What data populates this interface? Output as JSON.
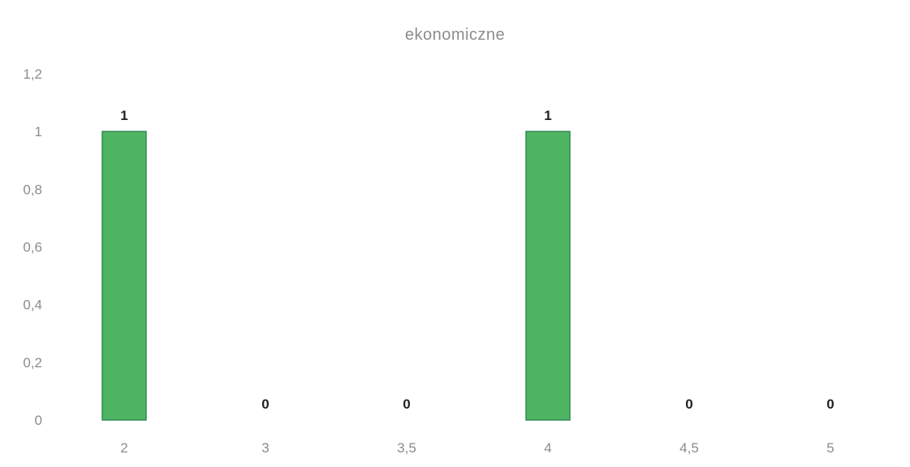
{
  "chart_data": {
    "type": "bar",
    "title": "ekonomiczne",
    "xlabel": "",
    "ylabel": "",
    "categories": [
      "2",
      "3",
      "3,5",
      "4",
      "4,5",
      "5"
    ],
    "values": [
      1,
      0,
      0,
      1,
      0,
      0
    ],
    "data_labels": [
      "1",
      "0",
      "0",
      "1",
      "0",
      "0"
    ],
    "y_ticks": [
      "0",
      "0,2",
      "0,4",
      "0,6",
      "0,8",
      "1",
      "1,2"
    ],
    "ylim": [
      0,
      1.2
    ],
    "grid": false,
    "legend": "none",
    "bar_color": "#4fb563",
    "bar_edge_color": "#2f8a55"
  }
}
